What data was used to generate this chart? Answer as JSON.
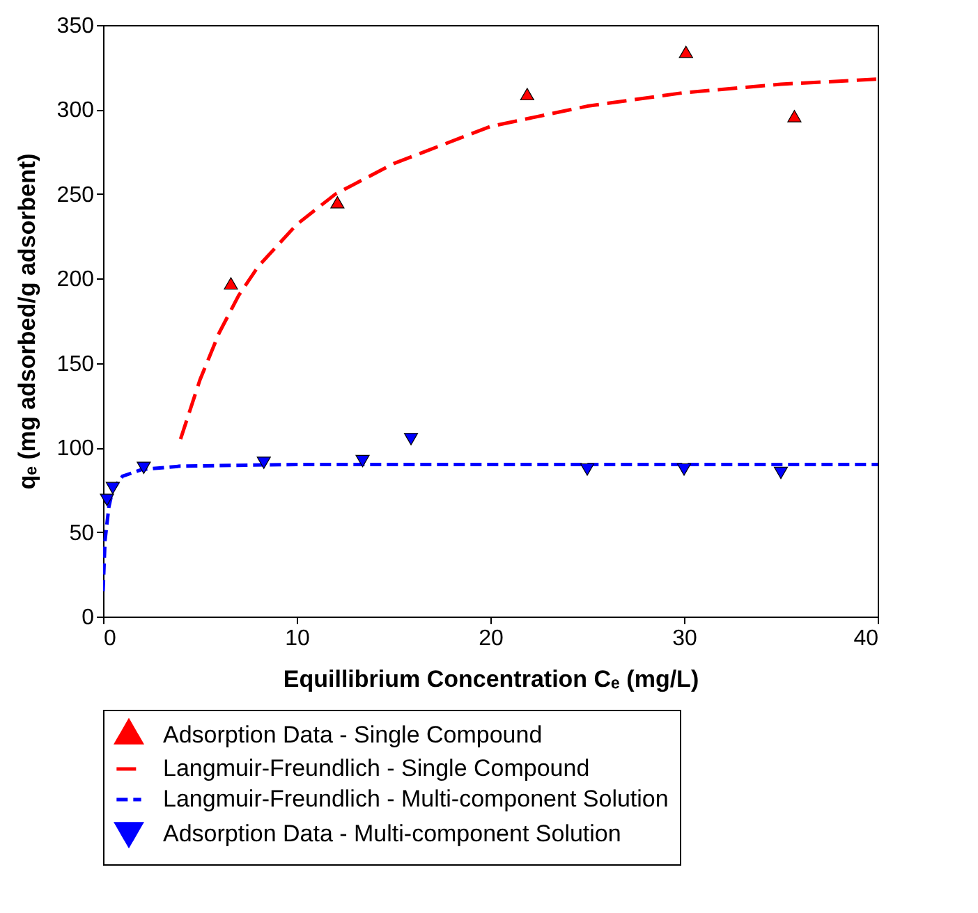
{
  "chart_data": {
    "type": "scatter",
    "xlabel": "Equillibrium Concentration Cₑ (mg/L)",
    "ylabel": "qₑ (mg adsorbed/g adsorbent)",
    "xlim": [
      0,
      40
    ],
    "xticks": [
      0,
      10,
      20,
      30,
      40
    ],
    "ylim": [
      0,
      350
    ],
    "yticks": [
      0,
      50,
      100,
      150,
      200,
      250,
      300,
      350
    ],
    "grid": false,
    "legend": "bottom",
    "series": [
      {
        "name": "Adsorption Data - Single Compound",
        "type": "scatter",
        "marker": "triangle",
        "color": "#ff0000",
        "x": [
          6.6,
          12.1,
          21.9,
          30.1,
          35.7
        ],
        "values": [
          196,
          244,
          308,
          333,
          295
        ]
      },
      {
        "name": "Langmuir-Freundlich - Single Compound",
        "type": "line",
        "line_style": "dashed",
        "color": "#ff0000",
        "x": [
          4,
          5,
          6,
          7,
          8,
          10,
          12,
          15,
          20,
          25,
          30,
          35,
          40
        ],
        "values": [
          105,
          140,
          168,
          190,
          207,
          232,
          250,
          268,
          290,
          302,
          310,
          315,
          318
        ]
      },
      {
        "name": "Langmuir-Freundlich - Multi-component Solution",
        "type": "line",
        "line_style": "dashed",
        "color": "#0000ff",
        "x": [
          0,
          0.1,
          0.3,
          0.5,
          1,
          2,
          4,
          10,
          40
        ],
        "values": [
          15,
          45,
          65,
          75,
          83,
          87,
          89,
          90,
          90
        ]
      },
      {
        "name": "Adsorption Data - Multi-component Solution",
        "type": "scatter",
        "marker": "triangle-down",
        "color": "#0000ff",
        "x": [
          0.2,
          0.5,
          2.1,
          8.3,
          13.4,
          15.9,
          25,
          30,
          35
        ],
        "values": [
          69,
          76,
          88,
          91,
          92,
          105,
          87,
          87,
          85
        ]
      }
    ]
  }
}
